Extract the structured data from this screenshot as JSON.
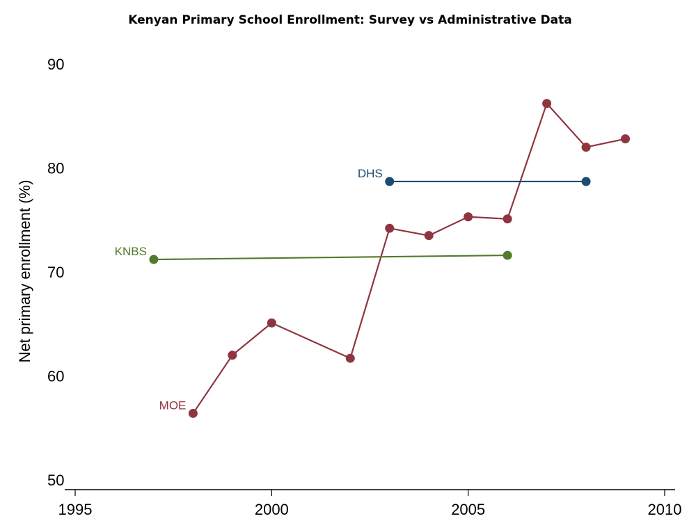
{
  "chart_data": {
    "type": "line",
    "title": "Kenyan Primary School Enrollment: Survey vs Administrative Data",
    "xlabel": "",
    "ylabel": "Net primary enrollment (%)",
    "xlim": [
      1995,
      2010
    ],
    "ylim": [
      50,
      90
    ],
    "xticks": [
      "1995",
      "2000",
      "2005",
      "2010"
    ],
    "yticks": [
      "50",
      "60",
      "70",
      "80",
      "90"
    ],
    "grid": false,
    "legend": "none (inline series labels)",
    "series": [
      {
        "name": "MOE",
        "color": "#8f3540",
        "x": [
          1998,
          1999,
          2000,
          2002,
          2003,
          2004,
          2005,
          2006,
          2007,
          2008,
          2009
        ],
        "y": [
          56.4,
          62.0,
          65.1,
          61.7,
          74.2,
          73.5,
          75.3,
          75.1,
          86.2,
          82.0,
          82.8
        ]
      },
      {
        "name": "DHS",
        "color": "#1f4a72",
        "x": [
          2003,
          2008
        ],
        "y": [
          78.7,
          78.7
        ]
      },
      {
        "name": "KNBS",
        "color": "#537a2d",
        "x": [
          1997,
          2006
        ],
        "y": [
          71.2,
          71.6
        ]
      }
    ]
  }
}
